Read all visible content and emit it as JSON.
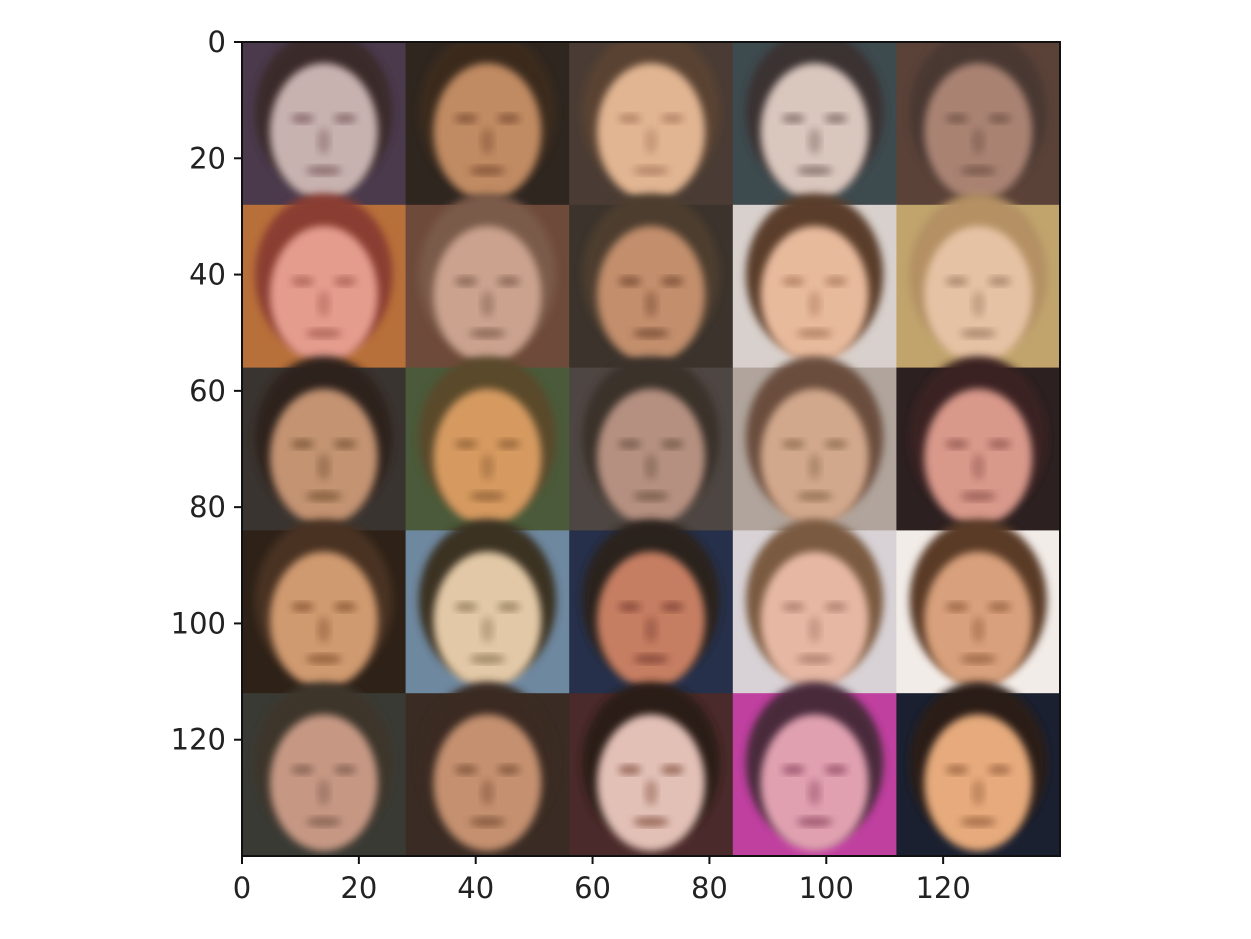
{
  "image": {
    "grid_rows": 5,
    "grid_cols": 5,
    "extent": [
      0,
      140
    ],
    "tiles": [
      {
        "bg": "#4a3a4c",
        "hair": "#3b2a2c",
        "face": "#c7b2b0",
        "shade": "#8d7070"
      },
      {
        "bg": "#2f2620",
        "hair": "#3b2a1f",
        "face": "#c08a62",
        "shade": "#8a5a3c"
      },
      {
        "bg": "#4a3c34",
        "hair": "#5a4330",
        "face": "#e1b592",
        "shade": "#b6876a"
      },
      {
        "bg": "#3d4a4e",
        "hair": "#3a3330",
        "face": "#d9c6bd",
        "shade": "#8f7a72"
      },
      {
        "bg": "#5a4238",
        "hair": "#4a3832",
        "face": "#a98272",
        "shade": "#7b5b4e"
      },
      {
        "bg": "#b8703a",
        "hair": "#8a3e30",
        "face": "#e49c8d",
        "shade": "#b26a5c"
      },
      {
        "bg": "#6e4a3a",
        "hair": "#7a5a4a",
        "face": "#caa28e",
        "shade": "#8f6a58"
      },
      {
        "bg": "#3b332c",
        "hair": "#4e3c2e",
        "face": "#c28e6c",
        "shade": "#85573e"
      },
      {
        "bg": "#d8d0cc",
        "hair": "#5a3e2c",
        "face": "#e8ba9c",
        "shade": "#b88668"
      },
      {
        "bg": "#c0a46c",
        "hair": "#b49064",
        "face": "#e6c2a4",
        "shade": "#ad8a70"
      },
      {
        "bg": "#3a3430",
        "hair": "#2e241c",
        "face": "#c39372",
        "shade": "#86603f"
      },
      {
        "bg": "#4a5a3a",
        "hair": "#5a4a2a",
        "face": "#d69a60",
        "shade": "#9c6a3c"
      },
      {
        "bg": "#4e4642",
        "hair": "#3a302a",
        "face": "#b59080",
        "shade": "#7e6050"
      },
      {
        "bg": "#b0a49c",
        "hair": "#6a4e3c",
        "face": "#d2a88c",
        "shade": "#9a7658"
      },
      {
        "bg": "#2c2020",
        "hair": "#3a2420",
        "face": "#d8988a",
        "shade": "#a0645a"
      },
      {
        "bg": "#2e2218",
        "hair": "#4a3020",
        "face": "#d09a70",
        "shade": "#94623e"
      },
      {
        "bg": "#6e88a0",
        "hair": "#3a3020",
        "face": "#e2c8a6",
        "shade": "#a08868"
      },
      {
        "bg": "#26304a",
        "hair": "#2a201c",
        "face": "#c67e62",
        "shade": "#8c4e3c"
      },
      {
        "bg": "#d8d2d6",
        "hair": "#7a5a40",
        "face": "#e6b8a4",
        "shade": "#b48472"
      },
      {
        "bg": "#f2ece8",
        "hair": "#5a3a28",
        "face": "#d8a07c",
        "shade": "#a06a4a"
      },
      {
        "bg": "#3a3a34",
        "hair": "#3e342c",
        "face": "#c69884",
        "shade": "#8c6656"
      },
      {
        "bg": "#3a2c24",
        "hair": "#3a2a20",
        "face": "#c49070",
        "shade": "#8a5c40"
      },
      {
        "bg": "#4a2a2a",
        "hair": "#2a1c18",
        "face": "#e2c0b6",
        "shade": "#9a6a5a"
      },
      {
        "bg": "#c040a0",
        "hair": "#4a2a3a",
        "face": "#e0a0b0",
        "shade": "#a05a72"
      },
      {
        "bg": "#1a2030",
        "hair": "#2a1e18",
        "face": "#e6aa7c",
        "shade": "#a8704c"
      }
    ]
  },
  "axes": {
    "x_ticks": [
      {
        "value": 0,
        "label": "0"
      },
      {
        "value": 20,
        "label": "20"
      },
      {
        "value": 40,
        "label": "40"
      },
      {
        "value": 60,
        "label": "60"
      },
      {
        "value": 80,
        "label": "80"
      },
      {
        "value": 100,
        "label": "100"
      },
      {
        "value": 120,
        "label": "120"
      }
    ],
    "y_ticks": [
      {
        "value": 0,
        "label": "0"
      },
      {
        "value": 20,
        "label": "20"
      },
      {
        "value": 40,
        "label": "40"
      },
      {
        "value": 60,
        "label": "60"
      },
      {
        "value": 80,
        "label": "80"
      },
      {
        "value": 100,
        "label": "100"
      },
      {
        "value": 120,
        "label": "120"
      }
    ]
  }
}
